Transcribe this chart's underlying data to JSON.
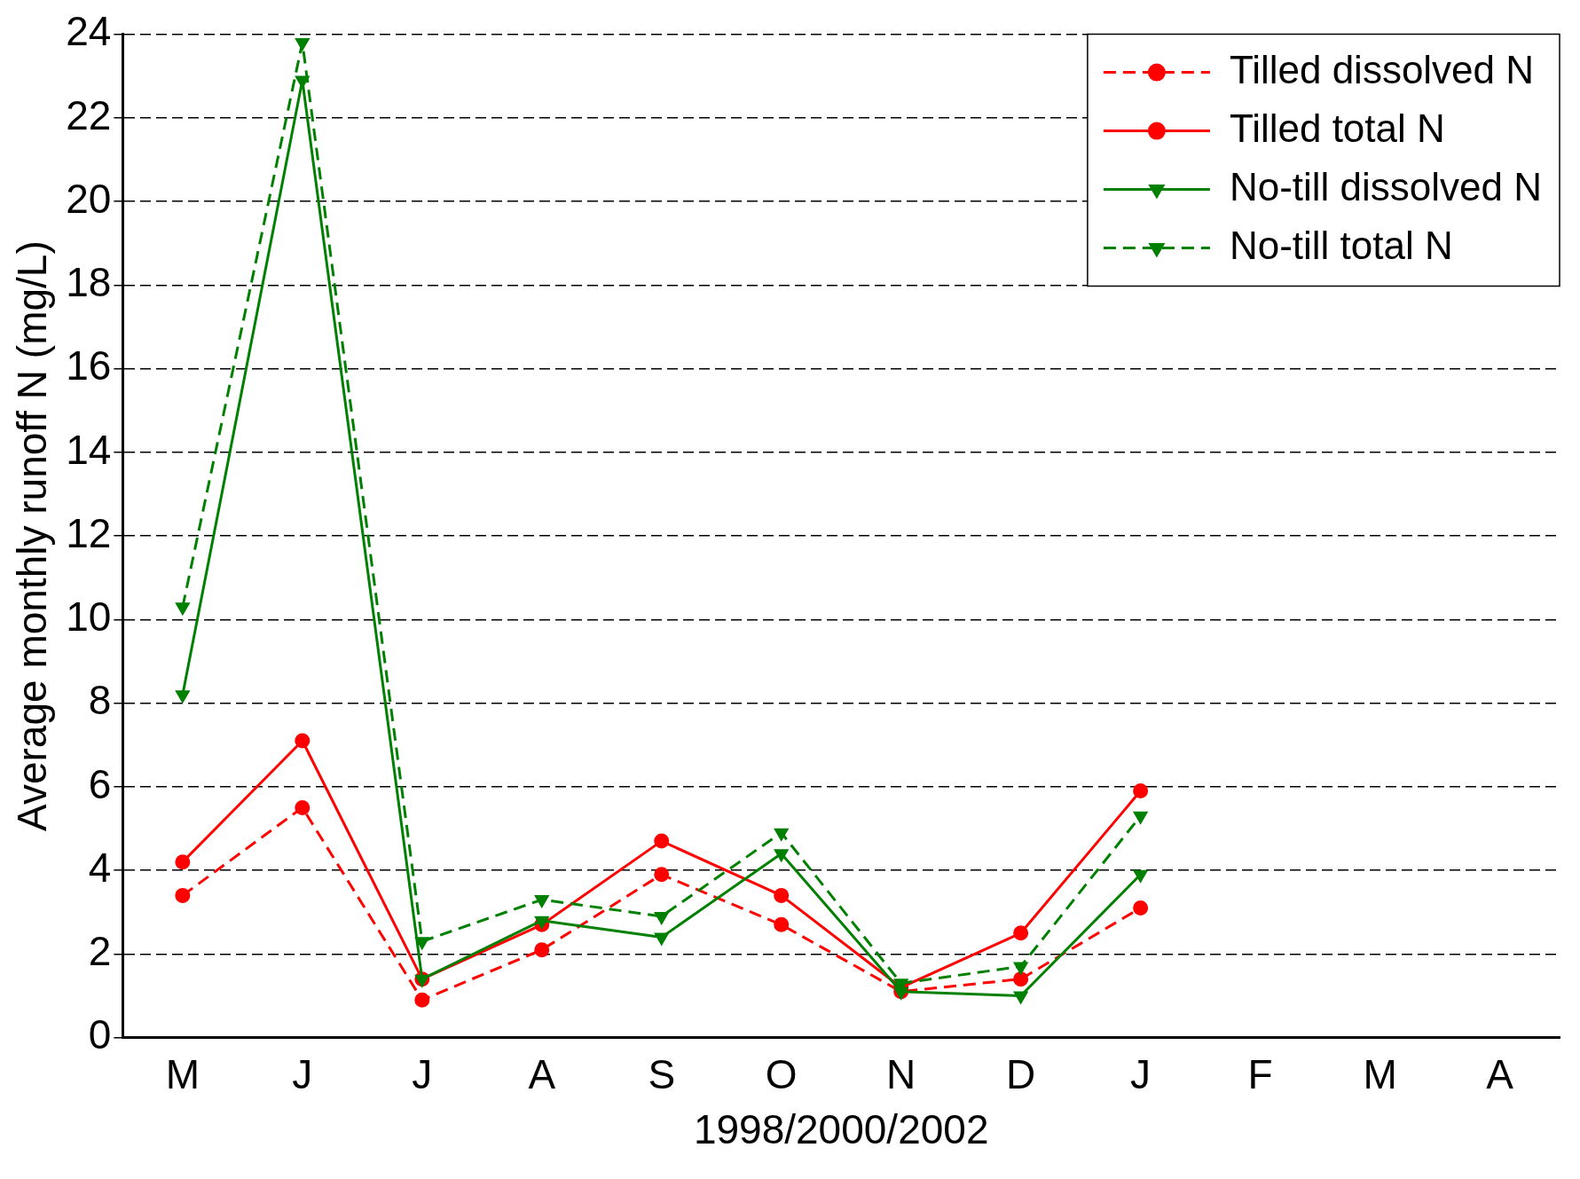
{
  "chart_data": {
    "type": "line",
    "xlabel": "1998/2000/2002",
    "ylabel": "Average monthly runoff N (mg/L)",
    "categories": [
      "M",
      "J",
      "J",
      "A",
      "S",
      "O",
      "N",
      "D",
      "J",
      "F",
      "M",
      "A"
    ],
    "ylim": [
      0,
      24
    ],
    "yticks": [
      0,
      2,
      4,
      6,
      8,
      10,
      12,
      14,
      16,
      18,
      20,
      22,
      24
    ],
    "grid": "y",
    "legend": "top right",
    "series": [
      {
        "name": "Tilled dissolved N",
        "color": "#ff0000",
        "marker": "circle",
        "line_style": "dashed",
        "values": [
          3.4,
          5.5,
          0.9,
          2.1,
          3.9,
          2.7,
          1.1,
          1.4,
          3.1,
          null,
          null,
          null
        ]
      },
      {
        "name": "Tilled total N",
        "color": "#ff0000",
        "marker": "circle",
        "line_style": "solid",
        "values": [
          4.2,
          7.1,
          1.4,
          2.7,
          4.7,
          3.4,
          1.2,
          2.5,
          5.9,
          null,
          null,
          null
        ]
      },
      {
        "name": "No-till dissolved N",
        "color": "#008000",
        "marker": "triangle",
        "line_style": "solid",
        "values": [
          8.2,
          22.9,
          1.4,
          2.8,
          2.4,
          4.4,
          1.1,
          1.0,
          3.9,
          null,
          null,
          null
        ]
      },
      {
        "name": "No-till total N",
        "color": "#008000",
        "marker": "triangle",
        "line_style": "dashed",
        "values": [
          10.3,
          23.8,
          2.3,
          3.3,
          2.9,
          4.9,
          1.3,
          1.7,
          5.3,
          null,
          null,
          null
        ]
      }
    ]
  }
}
